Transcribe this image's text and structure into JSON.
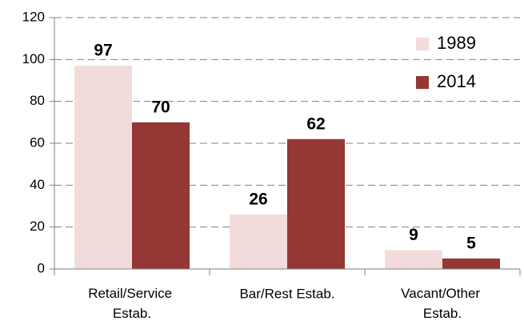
{
  "chart_data": {
    "type": "bar",
    "categories": [
      "Retail/Service Estab.",
      "Bar/Rest Estab.",
      "Vacant/Other Estab."
    ],
    "series": [
      {
        "name": "1989",
        "color": "#f2dcdb",
        "values": [
          97,
          26,
          9
        ]
      },
      {
        "name": "2014",
        "color": "#953735",
        "values": [
          70,
          62,
          5
        ]
      }
    ],
    "ylim": [
      0,
      120
    ],
    "yticks": [
      0,
      20,
      40,
      60,
      80,
      100,
      120
    ],
    "grid": true,
    "legend": "top-right"
  }
}
